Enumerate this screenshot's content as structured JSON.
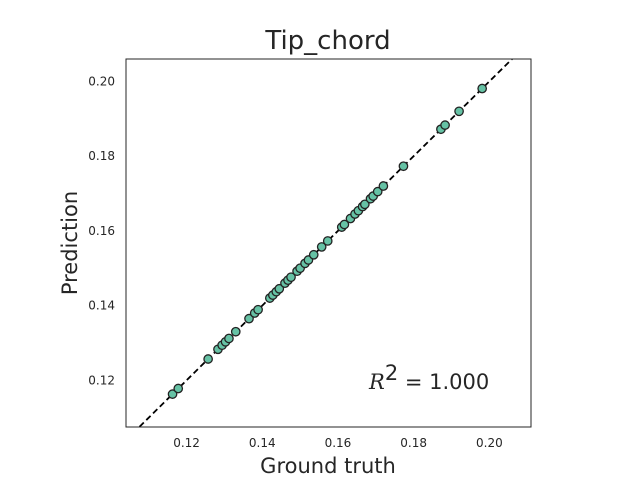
{
  "chart_data": {
    "type": "scatter",
    "title": "Tip_chord",
    "xlabel": "Ground truth",
    "ylabel": "Prediction",
    "xlim": [
      0.104,
      0.211
    ],
    "ylim": [
      0.1075,
      0.206
    ],
    "xticks": [
      0.12,
      0.14,
      0.16,
      0.18,
      0.2
    ],
    "xtick_labels": [
      "0.12",
      "0.14",
      "0.16",
      "0.18",
      "0.20"
    ],
    "yticks": [
      0.12,
      0.14,
      0.16,
      0.18,
      0.2
    ],
    "ytick_labels": [
      "0.12",
      "0.14",
      "0.16",
      "0.18",
      "0.20"
    ],
    "grid": false,
    "marker_color": "#66c2a5",
    "marker_edge_color": "#222222",
    "reference_line": {
      "style": "dashed",
      "color": "#000000",
      "from": [
        0.104,
        0.104
      ],
      "to": [
        0.211,
        0.211
      ]
    },
    "annotation": {
      "symbol": "R",
      "superscript": "2",
      "text": " = 1.000",
      "position": "bottom-right"
    },
    "points": [
      {
        "x": 0.1163,
        "y": 0.1163
      },
      {
        "x": 0.1178,
        "y": 0.1178
      },
      {
        "x": 0.1257,
        "y": 0.1257
      },
      {
        "x": 0.1283,
        "y": 0.1283
      },
      {
        "x": 0.1294,
        "y": 0.1294
      },
      {
        "x": 0.1303,
        "y": 0.1303
      },
      {
        "x": 0.1312,
        "y": 0.1312
      },
      {
        "x": 0.133,
        "y": 0.133
      },
      {
        "x": 0.1365,
        "y": 0.1365
      },
      {
        "x": 0.138,
        "y": 0.138
      },
      {
        "x": 0.1389,
        "y": 0.1389
      },
      {
        "x": 0.142,
        "y": 0.142
      },
      {
        "x": 0.1428,
        "y": 0.1428
      },
      {
        "x": 0.1437,
        "y": 0.1437
      },
      {
        "x": 0.1445,
        "y": 0.1445
      },
      {
        "x": 0.146,
        "y": 0.146
      },
      {
        "x": 0.1468,
        "y": 0.1468
      },
      {
        "x": 0.1476,
        "y": 0.1476
      },
      {
        "x": 0.1492,
        "y": 0.1492
      },
      {
        "x": 0.15,
        "y": 0.15
      },
      {
        "x": 0.1513,
        "y": 0.1513
      },
      {
        "x": 0.1522,
        "y": 0.1522
      },
      {
        "x": 0.1536,
        "y": 0.1536
      },
      {
        "x": 0.1557,
        "y": 0.1557
      },
      {
        "x": 0.1573,
        "y": 0.1573
      },
      {
        "x": 0.161,
        "y": 0.161
      },
      {
        "x": 0.1617,
        "y": 0.1617
      },
      {
        "x": 0.1633,
        "y": 0.1633
      },
      {
        "x": 0.1645,
        "y": 0.1645
      },
      {
        "x": 0.1654,
        "y": 0.1654
      },
      {
        "x": 0.1665,
        "y": 0.1665
      },
      {
        "x": 0.1671,
        "y": 0.1671
      },
      {
        "x": 0.1686,
        "y": 0.1686
      },
      {
        "x": 0.1693,
        "y": 0.1693
      },
      {
        "x": 0.1705,
        "y": 0.1705
      },
      {
        "x": 0.172,
        "y": 0.172
      },
      {
        "x": 0.1773,
        "y": 0.1773
      },
      {
        "x": 0.1872,
        "y": 0.1872
      },
      {
        "x": 0.1883,
        "y": 0.1883
      },
      {
        "x": 0.192,
        "y": 0.192
      },
      {
        "x": 0.1981,
        "y": 0.1981
      }
    ]
  }
}
